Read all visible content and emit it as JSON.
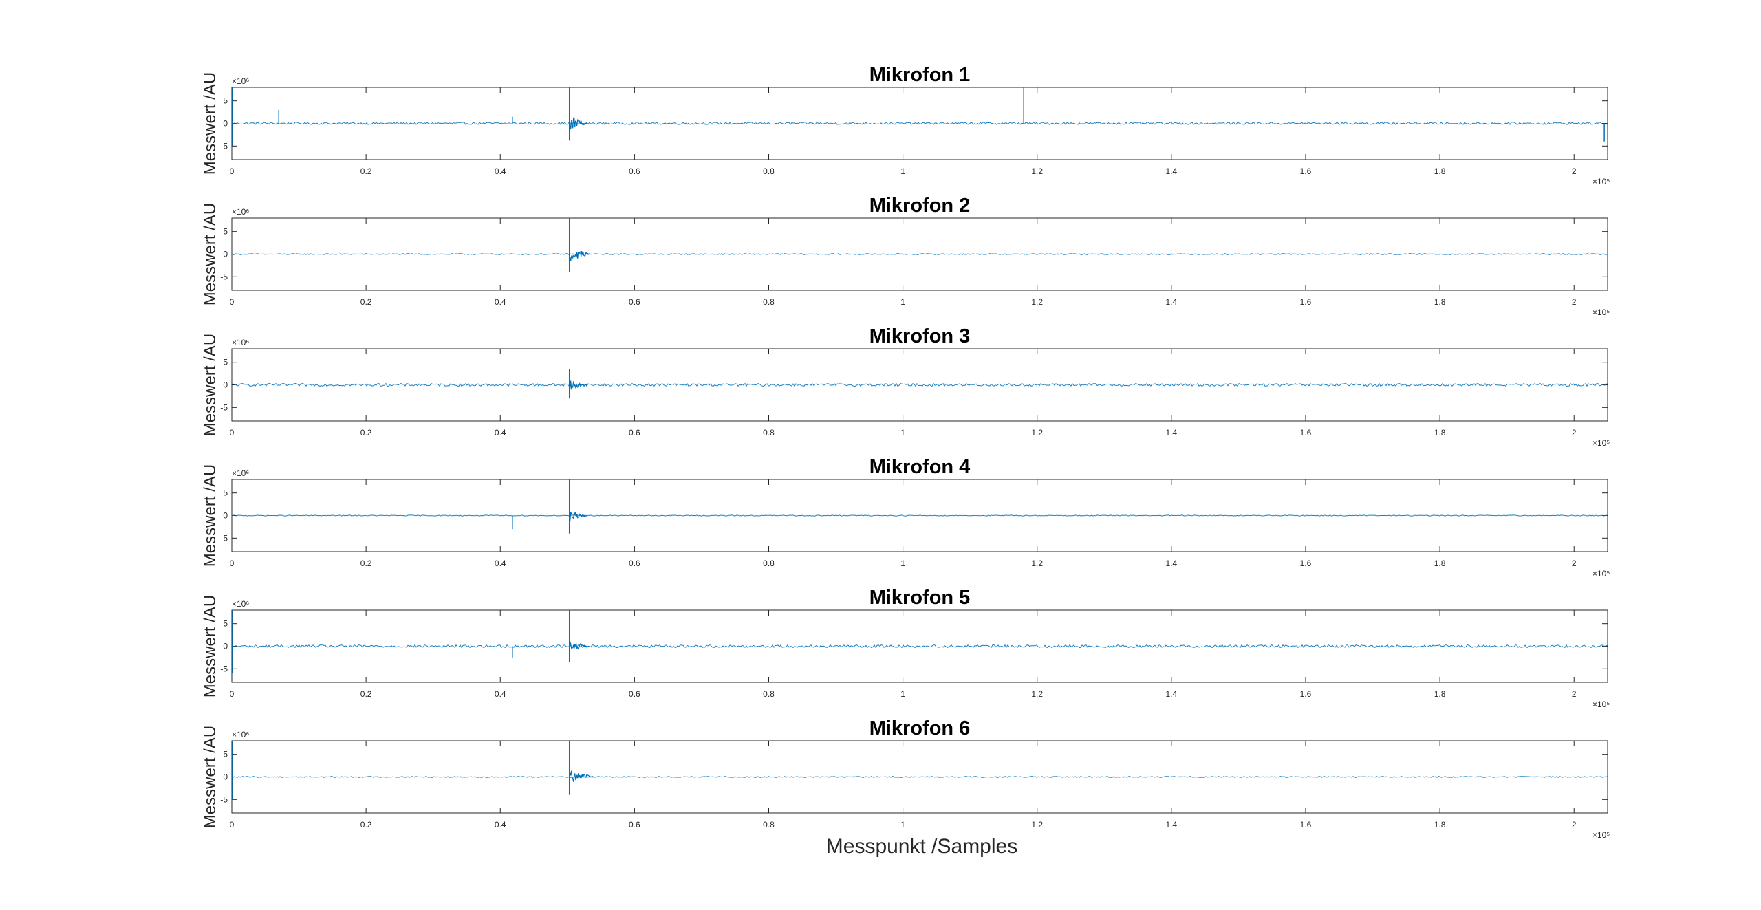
{
  "figure": {
    "xlabel": "Messpunkt /Samples"
  },
  "chart_data": [
    {
      "type": "line",
      "title": "Mikrofon 1",
      "ylabel": "Messwert /AU",
      "y_exponent_label": "×10⁶",
      "x_exponent_label": "×10⁵",
      "xlim": [
        0,
        2.05
      ],
      "ylim": [
        -8,
        8
      ],
      "xticks": [
        0,
        0.2,
        0.4,
        0.6,
        0.8,
        1,
        1.2,
        1.4,
        1.6,
        1.8,
        2
      ],
      "xtick_labels": [
        "0",
        "0.2",
        "0.4",
        "0.6",
        "0.8",
        "1",
        "1.2",
        "1.4",
        "1.6",
        "1.8",
        "2"
      ],
      "yticks": [
        5,
        0,
        -5
      ],
      "ytick_labels": [
        "5",
        "0",
        "-5"
      ],
      "grid": false,
      "series": [
        {
          "color": "#0072BD",
          "noise_amplitude": 0.25,
          "spikes": [
            {
              "x": 0.0,
              "min": -5,
              "max": 8
            },
            {
              "x": 0.07,
              "min": 0,
              "max": 3
            },
            {
              "x": 0.418,
              "min": 0,
              "max": 1.5
            },
            {
              "x": 0.503,
              "min": -3.8,
              "max": 8
            },
            {
              "x": 1.18,
              "min": 0,
              "max": 8
            },
            {
              "x": 2.045,
              "min": -4,
              "max": 0
            }
          ],
          "burst": {
            "x_start": 0.503,
            "x_end": 0.53,
            "amplitude": 1.8
          }
        }
      ]
    },
    {
      "type": "line",
      "title": "Mikrofon 2",
      "ylabel": "Messwert /AU",
      "y_exponent_label": "×10⁶",
      "x_exponent_label": "×10⁵",
      "xlim": [
        0,
        2.05
      ],
      "ylim": [
        -8,
        8
      ],
      "xticks": [
        0,
        0.2,
        0.4,
        0.6,
        0.8,
        1,
        1.2,
        1.4,
        1.6,
        1.8,
        2
      ],
      "xtick_labels": [
        "0",
        "0.2",
        "0.4",
        "0.6",
        "0.8",
        "1",
        "1.2",
        "1.4",
        "1.6",
        "1.8",
        "2"
      ],
      "yticks": [
        5,
        0,
        -5
      ],
      "ytick_labels": [
        "5",
        "0",
        "-5"
      ],
      "grid": false,
      "series": [
        {
          "color": "#0072BD",
          "noise_amplitude": 0.12,
          "spikes": [
            {
              "x": 0.503,
              "min": -4,
              "max": 8
            }
          ],
          "burst": {
            "x_start": 0.503,
            "x_end": 0.535,
            "amplitude": 1.6
          }
        }
      ]
    },
    {
      "type": "line",
      "title": "Mikrofon 3",
      "ylabel": "Messwert /AU",
      "y_exponent_label": "×10⁶",
      "x_exponent_label": "×10⁵",
      "xlim": [
        0,
        2.05
      ],
      "ylim": [
        -8,
        8
      ],
      "xticks": [
        0,
        0.2,
        0.4,
        0.6,
        0.8,
        1,
        1.2,
        1.4,
        1.6,
        1.8,
        2
      ],
      "xtick_labels": [
        "0",
        "0.2",
        "0.4",
        "0.6",
        "0.8",
        "1",
        "1.2",
        "1.4",
        "1.6",
        "1.8",
        "2"
      ],
      "yticks": [
        5,
        0,
        -5
      ],
      "ytick_labels": [
        "5",
        "0",
        "-5"
      ],
      "grid": false,
      "series": [
        {
          "color": "#0072BD",
          "noise_amplitude": 0.3,
          "spikes": [
            {
              "x": 0.503,
              "min": -3,
              "max": 3.5
            }
          ],
          "burst": {
            "x_start": 0.503,
            "x_end": 0.53,
            "amplitude": 1.2
          }
        }
      ]
    },
    {
      "type": "line",
      "title": "Mikrofon 4",
      "ylabel": "Messwert /AU",
      "y_exponent_label": "×10⁶",
      "x_exponent_label": "×10⁵",
      "xlim": [
        0,
        2.05
      ],
      "ylim": [
        -8,
        8
      ],
      "xticks": [
        0,
        0.2,
        0.4,
        0.6,
        0.8,
        1,
        1.2,
        1.4,
        1.6,
        1.8,
        2
      ],
      "xtick_labels": [
        "0",
        "0.2",
        "0.4",
        "0.6",
        "0.8",
        "1",
        "1.2",
        "1.4",
        "1.6",
        "1.8",
        "2"
      ],
      "yticks": [
        5,
        0,
        -5
      ],
      "ytick_labels": [
        "5",
        "0",
        "-5"
      ],
      "grid": false,
      "series": [
        {
          "color": "#0072BD",
          "noise_amplitude": 0.1,
          "spikes": [
            {
              "x": 0.418,
              "min": -3,
              "max": 0
            },
            {
              "x": 0.503,
              "min": -4,
              "max": 8
            }
          ],
          "burst": {
            "x_start": 0.503,
            "x_end": 0.53,
            "amplitude": 1.4
          }
        }
      ]
    },
    {
      "type": "line",
      "title": "Mikrofon 5",
      "ylabel": "Messwert /AU",
      "y_exponent_label": "×10⁶",
      "x_exponent_label": "×10⁵",
      "xlim": [
        0,
        2.05
      ],
      "ylim": [
        -8,
        8
      ],
      "xticks": [
        0,
        0.2,
        0.4,
        0.6,
        0.8,
        1,
        1.2,
        1.4,
        1.6,
        1.8,
        2
      ],
      "xtick_labels": [
        "0",
        "0.2",
        "0.4",
        "0.6",
        "0.8",
        "1",
        "1.2",
        "1.4",
        "1.6",
        "1.8",
        "2"
      ],
      "yticks": [
        5,
        0,
        -5
      ],
      "ytick_labels": [
        "5",
        "0",
        "-5"
      ],
      "grid": false,
      "series": [
        {
          "color": "#0072BD",
          "noise_amplitude": 0.3,
          "spikes": [
            {
              "x": 0.0,
              "min": -6,
              "max": 8
            },
            {
              "x": 0.418,
              "min": -2.5,
              "max": 0
            },
            {
              "x": 0.503,
              "min": -3.5,
              "max": 8
            }
          ],
          "burst": {
            "x_start": 0.503,
            "x_end": 0.53,
            "amplitude": 1.3
          }
        }
      ]
    },
    {
      "type": "line",
      "title": "Mikrofon 6",
      "ylabel": "Messwert /AU",
      "y_exponent_label": "×10⁶",
      "x_exponent_label": "×10⁵",
      "xlim": [
        0,
        2.05
      ],
      "ylim": [
        -8,
        8
      ],
      "xticks": [
        0,
        0.2,
        0.4,
        0.6,
        0.8,
        1,
        1.2,
        1.4,
        1.6,
        1.8,
        2
      ],
      "xtick_labels": [
        "0",
        "0.2",
        "0.4",
        "0.6",
        "0.8",
        "1",
        "1.2",
        "1.4",
        "1.6",
        "1.8",
        "2"
      ],
      "yticks": [
        5,
        0,
        -5
      ],
      "ytick_labels": [
        "5",
        "0",
        "-5"
      ],
      "grid": false,
      "series": [
        {
          "color": "#0072BD",
          "noise_amplitude": 0.12,
          "spikes": [
            {
              "x": 0.0,
              "min": -5,
              "max": 8
            },
            {
              "x": 0.503,
              "min": -4,
              "max": 8
            }
          ],
          "burst": {
            "x_start": 0.503,
            "x_end": 0.54,
            "amplitude": 1.6
          }
        }
      ]
    }
  ]
}
